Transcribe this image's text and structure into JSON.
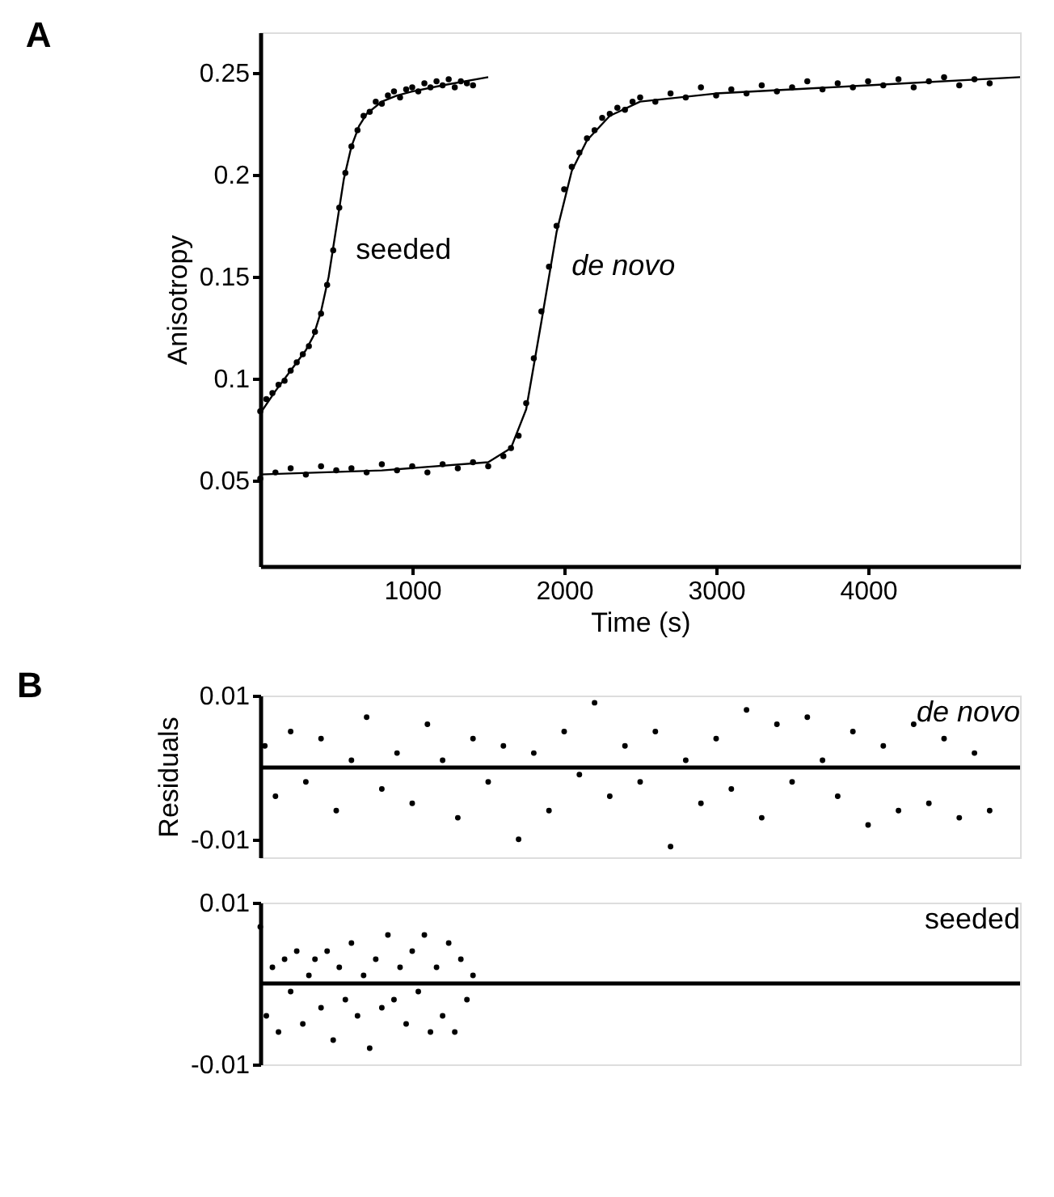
{
  "chart_data": [
    {
      "type": "scatter",
      "title": "A",
      "xlabel": "Time (s)",
      "ylabel": "Anisotropy",
      "xlim": [
        0,
        5000
      ],
      "ylim": [
        0.008,
        0.27
      ],
      "xticks": [
        1000,
        2000,
        3000,
        4000
      ],
      "yticks": [
        0.05,
        0.1,
        0.15,
        0.2,
        0.25
      ],
      "grid": false,
      "marker": "circle",
      "series": [
        {
          "name": "seeded",
          "color": "#000000",
          "x": [
            0,
            40,
            80,
            120,
            160,
            200,
            240,
            280,
            320,
            360,
            400,
            440,
            480,
            520,
            560,
            600,
            640,
            680,
            720,
            760,
            800,
            840,
            880,
            920,
            960,
            1000,
            1040,
            1080,
            1120,
            1160,
            1200,
            1240,
            1280,
            1320,
            1360,
            1400
          ],
          "values": [
            0.084,
            0.09,
            0.093,
            0.097,
            0.099,
            0.104,
            0.108,
            0.112,
            0.116,
            0.123,
            0.132,
            0.146,
            0.163,
            0.184,
            0.201,
            0.214,
            0.222,
            0.229,
            0.231,
            0.236,
            0.235,
            0.239,
            0.241,
            0.238,
            0.242,
            0.243,
            0.241,
            0.245,
            0.243,
            0.246,
            0.244,
            0.247,
            0.243,
            0.246,
            0.245,
            0.244
          ]
        },
        {
          "type": "line",
          "marker": "none",
          "line_style": "solid",
          "color": "#000000",
          "x": [
            0,
            100,
            200,
            300,
            350,
            400,
            450,
            500,
            550,
            600,
            650,
            700,
            800,
            900,
            1000,
            1200,
            1500
          ],
          "values": [
            0.083,
            0.094,
            0.104,
            0.114,
            0.121,
            0.133,
            0.15,
            0.174,
            0.198,
            0.214,
            0.224,
            0.23,
            0.236,
            0.239,
            0.241,
            0.244,
            0.248
          ]
        },
        {
          "name": "de novo",
          "color": "#000000",
          "x": [
            0,
            100,
            200,
            300,
            400,
            500,
            600,
            700,
            800,
            900,
            1000,
            1100,
            1200,
            1300,
            1400,
            1500,
            1600,
            1650,
            1700,
            1750,
            1800,
            1850,
            1900,
            1950,
            2000,
            2050,
            2100,
            2150,
            2200,
            2250,
            2300,
            2350,
            2400,
            2450,
            2500,
            2600,
            2700,
            2800,
            2900,
            3000,
            3100,
            3200,
            3300,
            3400,
            3500,
            3600,
            3700,
            3800,
            3900,
            4000,
            4100,
            4200,
            4300,
            4400,
            4500,
            4600,
            4700,
            4800
          ],
          "values": [
            0.051,
            0.054,
            0.056,
            0.053,
            0.057,
            0.055,
            0.056,
            0.054,
            0.058,
            0.055,
            0.057,
            0.054,
            0.058,
            0.056,
            0.059,
            0.057,
            0.062,
            0.066,
            0.072,
            0.088,
            0.11,
            0.133,
            0.155,
            0.175,
            0.193,
            0.204,
            0.211,
            0.218,
            0.222,
            0.228,
            0.23,
            0.233,
            0.232,
            0.236,
            0.238,
            0.236,
            0.24,
            0.238,
            0.243,
            0.239,
            0.242,
            0.24,
            0.244,
            0.241,
            0.243,
            0.246,
            0.242,
            0.245,
            0.243,
            0.246,
            0.244,
            0.247,
            0.243,
            0.246,
            0.248,
            0.244,
            0.247,
            0.245
          ]
        },
        {
          "type": "line",
          "marker": "none",
          "line_style": "solid",
          "color": "#000000",
          "x": [
            0,
            800,
            1500,
            1650,
            1750,
            1850,
            1950,
            2050,
            2150,
            2300,
            2500,
            3000,
            4000,
            5000
          ],
          "values": [
            0.053,
            0.055,
            0.059,
            0.066,
            0.085,
            0.128,
            0.172,
            0.202,
            0.217,
            0.229,
            0.236,
            0.24,
            0.244,
            0.248
          ]
        }
      ]
    },
    {
      "type": "scatter",
      "title": "B",
      "ylabel": "Residuals",
      "xlim": [
        0,
        5000
      ],
      "ylim": [
        -0.0125,
        0.01
      ],
      "yticks": [
        -0.01,
        0.01
      ],
      "tick_labels": "y",
      "grid": false,
      "marker": "circle",
      "ref_lines": [
        {
          "axis": "y",
          "value": 0,
          "color": "#000000",
          "line_style": "solid"
        }
      ],
      "series": [
        {
          "name": "de novo",
          "color": "#000000",
          "x": [
            30,
            100,
            200,
            300,
            400,
            500,
            600,
            700,
            800,
            900,
            1000,
            1100,
            1200,
            1300,
            1400,
            1500,
            1600,
            1700,
            1800,
            1900,
            2000,
            2100,
            2200,
            2300,
            2400,
            2500,
            2600,
            2700,
            2800,
            2900,
            3000,
            3100,
            3200,
            3300,
            3400,
            3500,
            3600,
            3700,
            3800,
            3900,
            4000,
            4100,
            4200,
            4300,
            4400,
            4500,
            4600,
            4700,
            4800
          ],
          "values": [
            0.003,
            -0.004,
            0.005,
            -0.002,
            0.004,
            -0.006,
            0.001,
            0.007,
            -0.003,
            0.002,
            -0.005,
            0.006,
            0.001,
            -0.007,
            0.004,
            -0.002,
            0.003,
            -0.01,
            0.002,
            -0.006,
            0.005,
            -0.001,
            0.009,
            -0.004,
            0.003,
            -0.002,
            0.005,
            -0.011,
            0.001,
            -0.005,
            0.004,
            -0.003,
            0.008,
            -0.007,
            0.006,
            -0.002,
            0.007,
            0.001,
            -0.004,
            0.005,
            -0.008,
            0.003,
            -0.006,
            0.006,
            -0.005,
            0.004,
            -0.007,
            0.002,
            -0.006
          ]
        }
      ]
    },
    {
      "type": "scatter",
      "xlim": [
        0,
        5000
      ],
      "ylim": [
        -0.01,
        0.01
      ],
      "yticks": [
        -0.01,
        0.01
      ],
      "tick_labels": "y",
      "grid": false,
      "marker": "circle",
      "ref_lines": [
        {
          "axis": "y",
          "value": 0,
          "color": "#000000",
          "line_style": "solid"
        }
      ],
      "series": [
        {
          "name": "seeded",
          "color": "#000000",
          "x": [
            0,
            40,
            80,
            120,
            160,
            200,
            240,
            280,
            320,
            360,
            400,
            440,
            480,
            520,
            560,
            600,
            640,
            680,
            720,
            760,
            800,
            840,
            880,
            920,
            960,
            1000,
            1040,
            1080,
            1120,
            1160,
            1200,
            1240,
            1280,
            1320,
            1360,
            1400
          ],
          "values": [
            0.007,
            -0.004,
            0.002,
            -0.006,
            0.003,
            -0.001,
            0.004,
            -0.005,
            0.001,
            0.003,
            -0.003,
            0.004,
            -0.007,
            0.002,
            -0.002,
            0.005,
            -0.004,
            0.001,
            -0.008,
            0.003,
            -0.003,
            0.006,
            -0.002,
            0.002,
            -0.005,
            0.004,
            -0.001,
            0.006,
            -0.006,
            0.002,
            -0.004,
            0.005,
            -0.006,
            0.003,
            -0.002,
            0.001
          ]
        }
      ]
    }
  ]
}
